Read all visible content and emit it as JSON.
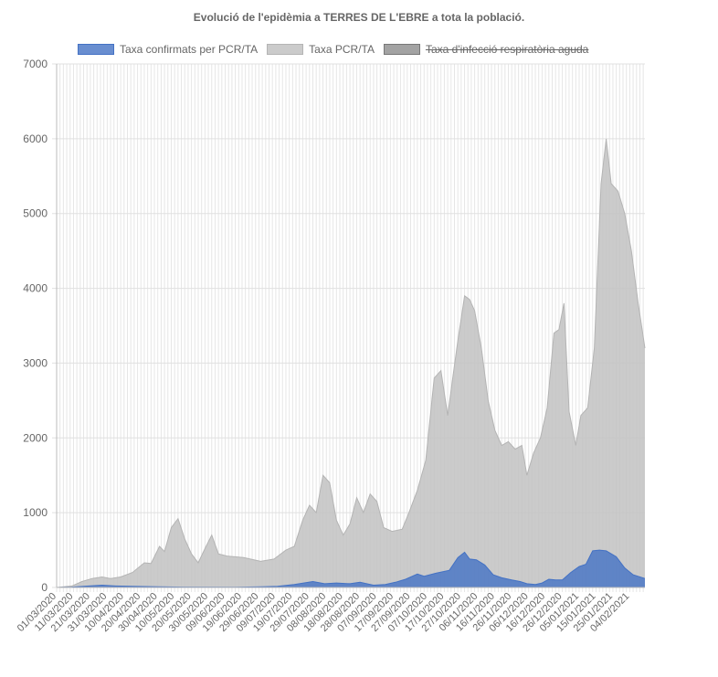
{
  "chart_data": {
    "type": "area",
    "title": "Evolució de l'epidèmia a TERRES DE L'EBRE a tota la població.",
    "xlabel": "",
    "ylabel": "",
    "ylim": [
      0,
      7000
    ],
    "yticks": [
      0,
      1000,
      2000,
      3000,
      4000,
      5000,
      6000,
      7000
    ],
    "grid": true,
    "legend_position": "top",
    "x_start": "2020-03-01",
    "x_end": "2021-02-13",
    "x_tick_labels": [
      "01/03/2020",
      "11/03/2020",
      "21/03/2020",
      "31/03/2020",
      "10/04/2020",
      "20/04/2020",
      "30/04/2020",
      "10/05/2020",
      "20/05/2020",
      "30/05/2020",
      "09/06/2020",
      "19/06/2020",
      "29/06/2020",
      "09/07/2020",
      "19/07/2020",
      "29/07/2020",
      "08/08/2020",
      "18/08/2020",
      "28/08/2020",
      "07/09/2020",
      "17/09/2020",
      "27/09/2020",
      "07/10/2020",
      "17/10/2020",
      "27/10/2020",
      "06/11/2020",
      "16/11/2020",
      "26/11/2020",
      "06/12/2020",
      "16/12/2020",
      "26/12/2020",
      "05/01/2021",
      "15/01/2021",
      "25/01/2021",
      "04/02/2021"
    ],
    "series": [
      {
        "name": "Taxa confirmats per PCR/TA",
        "color": "#4472c4",
        "fill": "rgba(68,114,196,0.8)",
        "hidden": false,
        "points": [
          [
            "2020-03-01",
            0
          ],
          [
            "2020-03-10",
            5
          ],
          [
            "2020-03-20",
            20
          ],
          [
            "2020-03-28",
            30
          ],
          [
            "2020-04-05",
            20
          ],
          [
            "2020-04-15",
            15
          ],
          [
            "2020-04-30",
            8
          ],
          [
            "2020-05-15",
            5
          ],
          [
            "2020-06-15",
            3
          ],
          [
            "2020-07-01",
            8
          ],
          [
            "2020-07-10",
            15
          ],
          [
            "2020-07-20",
            40
          ],
          [
            "2020-07-31",
            80
          ],
          [
            "2020-08-07",
            50
          ],
          [
            "2020-08-14",
            60
          ],
          [
            "2020-08-22",
            50
          ],
          [
            "2020-08-28",
            70
          ],
          [
            "2020-09-05",
            30
          ],
          [
            "2020-09-12",
            40
          ],
          [
            "2020-09-18",
            70
          ],
          [
            "2020-09-24",
            110
          ],
          [
            "2020-10-01",
            180
          ],
          [
            "2020-10-05",
            150
          ],
          [
            "2020-10-12",
            190
          ],
          [
            "2020-10-20",
            230
          ],
          [
            "2020-10-25",
            400
          ],
          [
            "2020-10-29",
            470
          ],
          [
            "2020-11-01",
            380
          ],
          [
            "2020-11-05",
            370
          ],
          [
            "2020-11-10",
            300
          ],
          [
            "2020-11-15",
            170
          ],
          [
            "2020-11-20",
            130
          ],
          [
            "2020-11-26",
            100
          ],
          [
            "2020-12-01",
            80
          ],
          [
            "2020-12-05",
            50
          ],
          [
            "2020-12-10",
            40
          ],
          [
            "2020-12-14",
            60
          ],
          [
            "2020-12-18",
            110
          ],
          [
            "2020-12-22",
            100
          ],
          [
            "2020-12-26",
            100
          ],
          [
            "2020-12-31",
            200
          ],
          [
            "2021-01-05",
            280
          ],
          [
            "2021-01-09",
            310
          ],
          [
            "2021-01-13",
            490
          ],
          [
            "2021-01-17",
            500
          ],
          [
            "2021-01-21",
            490
          ],
          [
            "2021-01-27",
            410
          ],
          [
            "2021-02-01",
            260
          ],
          [
            "2021-02-06",
            170
          ],
          [
            "2021-02-13",
            120
          ]
        ]
      },
      {
        "name": "Taxa PCR/TA",
        "color": "#b4b4b4",
        "fill": "rgba(194,194,194,0.85)",
        "hidden": false,
        "points": [
          [
            "2020-03-01",
            0
          ],
          [
            "2020-03-10",
            20
          ],
          [
            "2020-03-16",
            80
          ],
          [
            "2020-03-22",
            120
          ],
          [
            "2020-03-28",
            140
          ],
          [
            "2020-04-02",
            120
          ],
          [
            "2020-04-08",
            140
          ],
          [
            "2020-04-15",
            200
          ],
          [
            "2020-04-22",
            330
          ],
          [
            "2020-04-26",
            320
          ],
          [
            "2020-05-01",
            550
          ],
          [
            "2020-05-04",
            480
          ],
          [
            "2020-05-08",
            800
          ],
          [
            "2020-05-12",
            920
          ],
          [
            "2020-05-16",
            650
          ],
          [
            "2020-05-20",
            450
          ],
          [
            "2020-05-24",
            330
          ],
          [
            "2020-05-28",
            520
          ],
          [
            "2020-06-01",
            700
          ],
          [
            "2020-06-05",
            450
          ],
          [
            "2020-06-10",
            420
          ],
          [
            "2020-06-20",
            400
          ],
          [
            "2020-06-30",
            350
          ],
          [
            "2020-07-08",
            380
          ],
          [
            "2020-07-15",
            500
          ],
          [
            "2020-07-20",
            550
          ],
          [
            "2020-07-25",
            900
          ],
          [
            "2020-07-29",
            1100
          ],
          [
            "2020-08-02",
            1000
          ],
          [
            "2020-08-06",
            1500
          ],
          [
            "2020-08-10",
            1400
          ],
          [
            "2020-08-14",
            900
          ],
          [
            "2020-08-18",
            700
          ],
          [
            "2020-08-22",
            850
          ],
          [
            "2020-08-26",
            1200
          ],
          [
            "2020-08-30",
            1000
          ],
          [
            "2020-09-03",
            1250
          ],
          [
            "2020-09-07",
            1150
          ],
          [
            "2020-09-11",
            800
          ],
          [
            "2020-09-16",
            750
          ],
          [
            "2020-09-22",
            780
          ],
          [
            "2020-09-26",
            1000
          ],
          [
            "2020-10-01",
            1300
          ],
          [
            "2020-10-06",
            1700
          ],
          [
            "2020-10-11",
            2800
          ],
          [
            "2020-10-15",
            2900
          ],
          [
            "2020-10-19",
            2300
          ],
          [
            "2020-10-22",
            2800
          ],
          [
            "2020-10-25",
            3300
          ],
          [
            "2020-10-29",
            3900
          ],
          [
            "2020-11-01",
            3850
          ],
          [
            "2020-11-04",
            3700
          ],
          [
            "2020-11-08",
            3200
          ],
          [
            "2020-11-12",
            2500
          ],
          [
            "2020-11-16",
            2100
          ],
          [
            "2020-11-20",
            1900
          ],
          [
            "2020-11-24",
            1950
          ],
          [
            "2020-11-28",
            1850
          ],
          [
            "2020-12-02",
            1900
          ],
          [
            "2020-12-05",
            1500
          ],
          [
            "2020-12-09",
            1800
          ],
          [
            "2020-12-13",
            2000
          ],
          [
            "2020-12-17",
            2400
          ],
          [
            "2020-12-21",
            3400
          ],
          [
            "2020-12-24",
            3450
          ],
          [
            "2020-12-27",
            3800
          ],
          [
            "2020-12-30",
            2350
          ],
          [
            "2021-01-03",
            1900
          ],
          [
            "2021-01-06",
            2300
          ],
          [
            "2021-01-10",
            2400
          ],
          [
            "2021-01-14",
            3200
          ],
          [
            "2021-01-18",
            5400
          ],
          [
            "2021-01-21",
            6000
          ],
          [
            "2021-01-24",
            5400
          ],
          [
            "2021-01-28",
            5300
          ],
          [
            "2021-02-01",
            5000
          ],
          [
            "2021-02-05",
            4500
          ],
          [
            "2021-02-09",
            3800
          ],
          [
            "2021-02-13",
            3200
          ]
        ]
      },
      {
        "name": "Taxa d'infecció respiratòria aguda",
        "color": "#777777",
        "fill": "rgba(140,140,140,0.8)",
        "hidden": true,
        "points": []
      }
    ]
  }
}
